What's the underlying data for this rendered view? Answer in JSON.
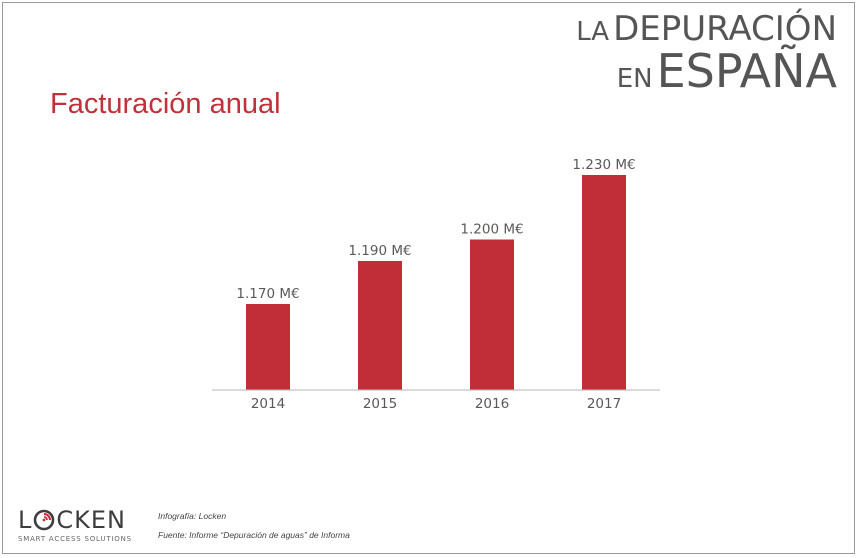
{
  "brand": {
    "line1_small": "LA",
    "line1_large": "DEPURACIÓN",
    "line2_small": "EN",
    "line2_large": "ESPAÑA"
  },
  "title": "Facturación anual",
  "chart_data": {
    "type": "bar",
    "categories": [
      "2014",
      "2015",
      "2016",
      "2017"
    ],
    "values": [
      1170,
      1190,
      1200,
      1230
    ],
    "data_labels": [
      "1.170 M€",
      "1.190 M€",
      "1.200 M€",
      "1.230 M€"
    ],
    "title": "Facturación anual",
    "xlabel": "",
    "ylabel": "",
    "ylim": [
      1130,
      1250
    ],
    "grid": false,
    "bar_color": "#c22e37"
  },
  "logo": {
    "word_before": "L",
    "word_after": "CKEN",
    "tagline": "SMART ACCESS SOLUTIONS",
    "accent_color": "#c22e37"
  },
  "credits": {
    "infografia": "Infografía: Locken",
    "fuente": "Fuente: Informe “Depuración de aguas” de Informa"
  }
}
